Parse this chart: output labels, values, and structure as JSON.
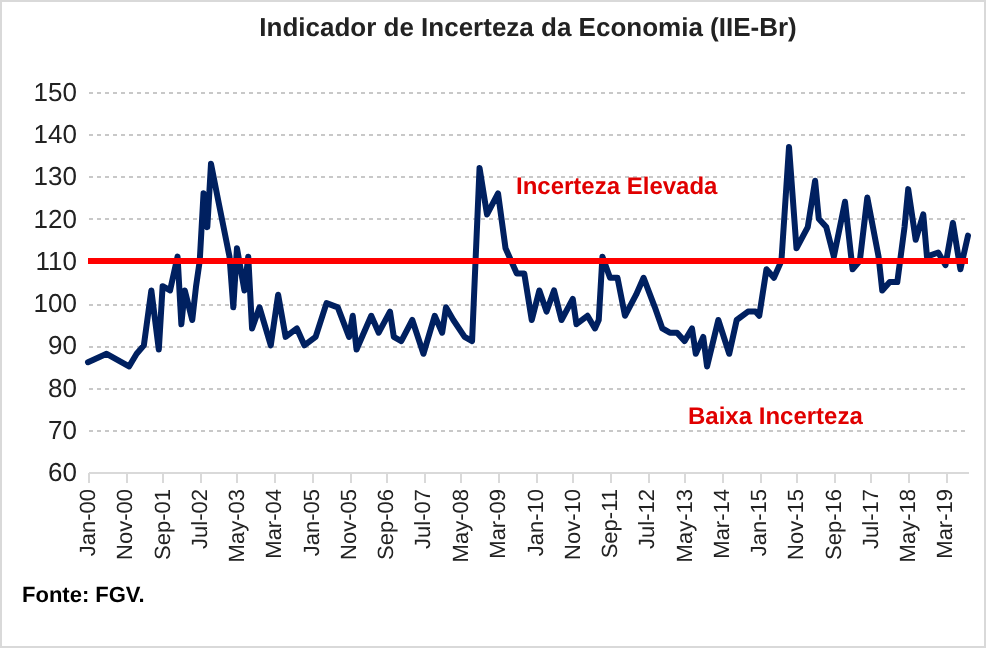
{
  "chart_data": {
    "type": "line",
    "title": "Indicador de Incerteza da Economia (IIE-Br)",
    "x": [
      "2000-01",
      "2000-06",
      "2000-12",
      "2001-02",
      "2001-04",
      "2001-06",
      "2001-08",
      "2001-09",
      "2001-11",
      "2002-01",
      "2002-02",
      "2002-03",
      "2002-05",
      "2002-06",
      "2002-07",
      "2002-08",
      "2002-09",
      "2002-10",
      "2002-12",
      "2003-03",
      "2003-04",
      "2003-05",
      "2003-07",
      "2003-08",
      "2003-09",
      "2003-11",
      "2004-02",
      "2004-04",
      "2004-06",
      "2004-09",
      "2004-11",
      "2005-02",
      "2005-05",
      "2005-08",
      "2005-11",
      "2005-12",
      "2006-01",
      "2006-05",
      "2006-07",
      "2006-10",
      "2006-11",
      "2007-01",
      "2007-04",
      "2007-07",
      "2007-10",
      "2007-12",
      "2008-01",
      "2008-03",
      "2008-06",
      "2008-08",
      "2008-10",
      "2008-12",
      "2009-03",
      "2009-05",
      "2009-08",
      "2009-10",
      "2009-12",
      "2010-02",
      "2010-04",
      "2010-06",
      "2010-08",
      "2010-11",
      "2010-12",
      "2011-03",
      "2011-05",
      "2011-06",
      "2011-07",
      "2011-09",
      "2011-11",
      "2012-01",
      "2012-04",
      "2012-06",
      "2012-09",
      "2012-11",
      "2013-01",
      "2013-03",
      "2013-05",
      "2013-07",
      "2013-08",
      "2013-10",
      "2013-11",
      "2014-02",
      "2014-05",
      "2014-07",
      "2014-10",
      "2014-12",
      "2015-01",
      "2015-03",
      "2015-05",
      "2015-07",
      "2015-09",
      "2015-11",
      "2016-02",
      "2016-04",
      "2016-05",
      "2016-07",
      "2016-09",
      "2016-12",
      "2017-02",
      "2017-04",
      "2017-06",
      "2017-09",
      "2017-10",
      "2017-12",
      "2018-02",
      "2018-04",
      "2018-05",
      "2018-07",
      "2018-09",
      "2018-10",
      "2019-01",
      "2019-03",
      "2019-05",
      "2019-07",
      "2019-09"
    ],
    "series": [
      {
        "color": "#002060",
        "values": [
          86,
          88,
          85,
          88,
          90,
          103,
          89,
          104,
          103,
          111,
          95,
          103,
          96,
          104,
          110,
          126,
          118,
          133,
          124,
          111,
          99,
          113,
          103,
          111,
          94,
          99,
          90,
          102,
          92,
          94,
          90,
          92,
          100,
          99,
          92,
          97,
          89,
          97,
          93,
          98,
          92,
          91,
          96,
          88,
          97,
          93,
          99,
          96,
          92,
          91,
          132,
          121,
          126,
          113,
          107,
          107,
          96,
          103,
          98,
          103,
          96,
          101,
          95,
          97,
          94,
          96,
          111,
          106,
          106,
          97,
          102,
          106,
          99,
          94,
          93,
          93,
          91,
          94,
          88,
          92,
          85,
          96,
          88,
          96,
          98,
          98,
          97,
          108,
          106,
          110,
          137,
          113,
          118,
          129,
          120,
          118,
          111,
          124,
          108,
          110,
          125,
          111,
          103,
          105,
          105,
          118,
          127,
          115,
          121,
          111,
          112,
          109,
          119,
          108,
          116
        ]
      }
    ],
    "xlim": [
      "2000-01",
      "2019-09"
    ],
    "xticks": [
      {
        "value": "2000-01",
        "label": "Jan-00"
      },
      {
        "value": "2000-11",
        "label": "Nov-00"
      },
      {
        "value": "2001-09",
        "label": "Sep-01"
      },
      {
        "value": "2002-07",
        "label": "Jul-02"
      },
      {
        "value": "2003-05",
        "label": "May-03"
      },
      {
        "value": "2004-03",
        "label": "Mar-04"
      },
      {
        "value": "2005-01",
        "label": "Jan-05"
      },
      {
        "value": "2005-11",
        "label": "Nov-05"
      },
      {
        "value": "2006-09",
        "label": "Sep-06"
      },
      {
        "value": "2007-07",
        "label": "Jul-07"
      },
      {
        "value": "2008-05",
        "label": "May-08"
      },
      {
        "value": "2009-03",
        "label": "Mar-09"
      },
      {
        "value": "2010-01",
        "label": "Jan-10"
      },
      {
        "value": "2010-11",
        "label": "Nov-10"
      },
      {
        "value": "2011-09",
        "label": "Sep-11"
      },
      {
        "value": "2012-07",
        "label": "Jul-12"
      },
      {
        "value": "2013-05",
        "label": "May-13"
      },
      {
        "value": "2014-03",
        "label": "Mar-14"
      },
      {
        "value": "2015-01",
        "label": "Jan-15"
      },
      {
        "value": "2015-11",
        "label": "Nov-15"
      },
      {
        "value": "2016-09",
        "label": "Sep-16"
      },
      {
        "value": "2017-07",
        "label": "Jul-17"
      },
      {
        "value": "2018-05",
        "label": "May-18"
      },
      {
        "value": "2019-03",
        "label": "Mar-19"
      }
    ],
    "ylim": [
      60,
      150
    ],
    "yticks": [
      60,
      70,
      80,
      90,
      100,
      110,
      120,
      130,
      140,
      150
    ],
    "grid": "y",
    "marker": "none",
    "line_style": "solid",
    "ref_lines": [
      {
        "axis": "y",
        "value": 110,
        "color": "#ff0000"
      }
    ],
    "annotations": [
      "Incerteza Elevada",
      "Baixa Incerteza",
      "Fonte: FGV."
    ]
  }
}
